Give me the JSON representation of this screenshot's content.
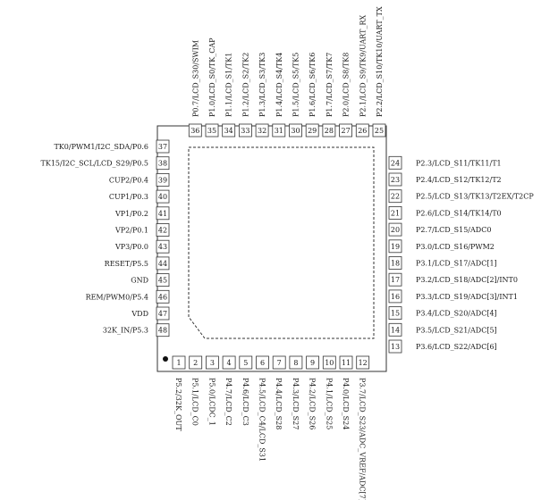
{
  "pins": [
    {
      "num": "1",
      "label": "P5.2/32K_OUT"
    },
    {
      "num": "2",
      "label": "P5.1/LCD_C0"
    },
    {
      "num": "3",
      "label": "P5.0/LCDC_1"
    },
    {
      "num": "4",
      "label": "P4.7/LCD_C2"
    },
    {
      "num": "5",
      "label": "P4.6/LCD_C3"
    },
    {
      "num": "6",
      "label": "P4.5/LCD_C4/LCD_S31"
    },
    {
      "num": "7",
      "label": "P4.4/LCD_S28"
    },
    {
      "num": "8",
      "label": "P4.3/LCD_S27"
    },
    {
      "num": "9",
      "label": "P4.2/LCD_S26"
    },
    {
      "num": "10",
      "label": "P4.1/LCD_S25"
    },
    {
      "num": "11",
      "label": "P4.0/LCD_S24"
    },
    {
      "num": "12",
      "label": "P3.7/LCD_S23/ADC_VREF/ADC[7]"
    },
    {
      "num": "13",
      "label": "P3.6/LCD_S22/ADC[6]"
    },
    {
      "num": "14",
      "label": "P3.5/LCD_S21/ADC[5]"
    },
    {
      "num": "15",
      "label": "P3.4/LCD_S20/ADC[4]"
    },
    {
      "num": "16",
      "label": "P3.3/LCD_S19/ADC[3]/INT1"
    },
    {
      "num": "17",
      "label": "P3.2/LCD_S18/ADC[2]/INT0"
    },
    {
      "num": "18",
      "label": "P3.1/LCD_S17/ADC[1]"
    },
    {
      "num": "19",
      "label": "P3.0/LCD_S16/PWM2"
    },
    {
      "num": "20",
      "label": "P2.7/LCD_S15/ADC0"
    },
    {
      "num": "21",
      "label": "P2.6/LCD_S14/TK14/T0"
    },
    {
      "num": "22",
      "label": "P2.5/LCD_S13/TK13/T2EX/T2CP"
    },
    {
      "num": "23",
      "label": "P2.4/LCD_S12/TK12/T2"
    },
    {
      "num": "24",
      "label": "P2.3/LCD_S11/TK11/T1"
    },
    {
      "num": "25",
      "label": "P2.2/LCD_S10/TK10/UART_TX"
    },
    {
      "num": "26",
      "label": "P2.1/LCD_S9/TK9/UART_RX"
    },
    {
      "num": "27",
      "label": "P2.0/LCD_S8/TK8"
    },
    {
      "num": "28",
      "label": "P1.7/LCD_S7/TK7"
    },
    {
      "num": "29",
      "label": "P1.6/LCD_S6/TK6"
    },
    {
      "num": "30",
      "label": "P1.5/LCD_S5/TK5"
    },
    {
      "num": "31",
      "label": "P1.4/LCD_S4/TK4"
    },
    {
      "num": "32",
      "label": "P1.3/LCD_S3/TK3"
    },
    {
      "num": "33",
      "label": "P1.2/LCD_S2/TK2"
    },
    {
      "num": "34",
      "label": "P1.1/LCD_S1/TK1"
    },
    {
      "num": "35",
      "label": "P1.0/LCD_S0/TK_CAP"
    },
    {
      "num": "36",
      "label": "P0.7/LCD_S30/SWIM"
    },
    {
      "num": "37",
      "label": "TK0/PWM1/I2C_SDA/P0.6"
    },
    {
      "num": "38",
      "label": "TK15/I2C_SCL/LCD_S29/P0.5"
    },
    {
      "num": "39",
      "label": "CUP2/P0.4"
    },
    {
      "num": "40",
      "label": "CUP1/P0.3"
    },
    {
      "num": "41",
      "label": "VP1/P0.2"
    },
    {
      "num": "42",
      "label": "VP2/P0.1"
    },
    {
      "num": "43",
      "label": "VP3/P0.0"
    },
    {
      "num": "44",
      "label": "RESET/P5.5"
    },
    {
      "num": "45",
      "label": "GND"
    },
    {
      "num": "46",
      "label": "REM/PWM0/P5.4"
    },
    {
      "num": "47",
      "label": "VDD"
    },
    {
      "num": "48",
      "label": "32K_IN/P5.3"
    }
  ]
}
